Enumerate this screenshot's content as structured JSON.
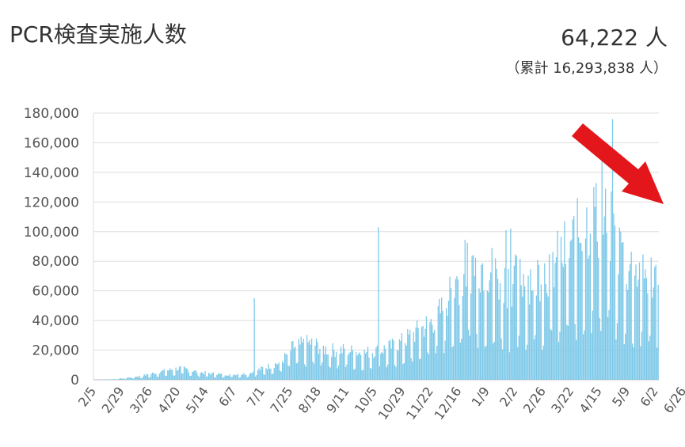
{
  "header": {
    "title": "PCR検査実施人数",
    "value": "64,222 人",
    "total": "（累計 16,293,838 人）"
  },
  "colors": {
    "bar": "#7cc8e8",
    "bar_stroke": "#5bb5dd",
    "grid": "#dddddd",
    "axis": "#bbbbbb",
    "arrow": "#e3161b"
  },
  "chart_data": {
    "type": "bar",
    "title": "PCR検査実施人数",
    "xlabel": "",
    "ylabel": "",
    "ylim": [
      0,
      180000
    ],
    "yticks": [
      0,
      20000,
      40000,
      60000,
      80000,
      100000,
      120000,
      140000,
      160000,
      180000
    ],
    "ytick_labels": [
      "0",
      "20,000",
      "40,000",
      "60,000",
      "80,000",
      "100,000",
      "120,000",
      "140,000",
      "160,000",
      "180,000"
    ],
    "x_tick_labels": [
      "2/5",
      "2/29",
      "3/26",
      "4/20",
      "5/14",
      "6/7",
      "7/1",
      "7/25",
      "8/18",
      "9/11",
      "10/5",
      "10/29",
      "11/22",
      "12/16",
      "1/9",
      "2/2",
      "2/26",
      "3/22",
      "4/15",
      "5/9",
      "6/2",
      "6/26"
    ],
    "grid": true,
    "legend": "none",
    "approx_series_anchors": {
      "x_index_step_days": 1,
      "days_between_ticks": 24,
      "anchors": [
        [
          0,
          0
        ],
        [
          20,
          500
        ],
        [
          40,
          2500
        ],
        [
          60,
          6000
        ],
        [
          75,
          8000
        ],
        [
          90,
          5000
        ],
        [
          110,
          3500
        ],
        [
          130,
          4000
        ],
        [
          145,
          8000
        ],
        [
          160,
          12000
        ],
        [
          170,
          22000
        ],
        [
          185,
          25000
        ],
        [
          200,
          20000
        ],
        [
          215,
          20000
        ],
        [
          230,
          18000
        ],
        [
          245,
          20000
        ],
        [
          260,
          24000
        ],
        [
          275,
          32000
        ],
        [
          290,
          40000
        ],
        [
          305,
          55000
        ],
        [
          320,
          72000
        ],
        [
          335,
          70000
        ],
        [
          350,
          60000
        ],
        [
          365,
          62000
        ],
        [
          380,
          65000
        ],
        [
          395,
          72000
        ],
        [
          410,
          85000
        ],
        [
          425,
          100000
        ],
        [
          440,
          95000
        ],
        [
          455,
          70000
        ],
        [
          470,
          65000
        ],
        [
          482,
          64222
        ]
      ],
      "spikes": [
        [
          137,
          55000
        ],
        [
          243,
          103000
        ],
        [
          352,
          101000
        ],
        [
          356,
          102000
        ],
        [
          427,
          130000
        ],
        [
          434,
          148000
        ],
        [
          443,
          176000
        ],
        [
          450,
          100000
        ]
      ]
    }
  },
  "annotation": {
    "arrow_icon": "red-arrow-down-right-icon"
  }
}
